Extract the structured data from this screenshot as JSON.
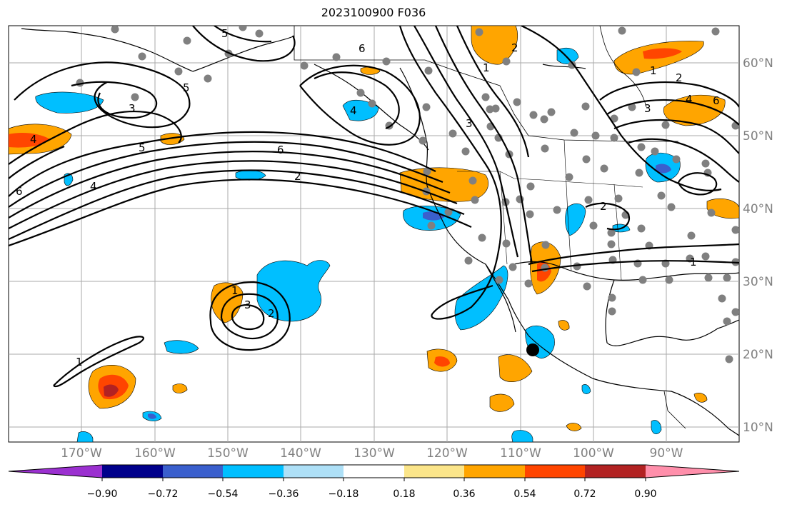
{
  "title": "2023100900 F036",
  "map": {
    "lat_labels": [
      "60°N",
      "50°N",
      "40°N",
      "30°N",
      "20°N",
      "10°N"
    ],
    "lon_labels": [
      "170°W",
      "160°W",
      "150°W",
      "140°W",
      "130°W",
      "120°W",
      "110°W",
      "100°W",
      "90°W"
    ],
    "contour_labels": [
      "1",
      "2",
      "3",
      "4",
      "5",
      "6"
    ],
    "colors": {
      "negative_strong": "#9b30d0",
      "negative_navy": "#00008b",
      "negative_blue": "#3a5fcd",
      "negative_cyan": "#00bfff",
      "negative_light": "#aee0f7",
      "positive_light": "#fbe58a",
      "positive_orange": "#ffa500",
      "positive_red": "#ff4500",
      "positive_darkred": "#b22222",
      "positive_pink": "#ff8fab",
      "station_dot": "#808080"
    }
  },
  "colorbar": {
    "tick_labels": [
      "−0.90",
      "−0.72",
      "−0.54",
      "−0.36",
      "−0.18",
      "0.18",
      "0.36",
      "0.54",
      "0.72",
      "0.90"
    ],
    "colors": [
      "#9b30d0",
      "#00008b",
      "#3a5fcd",
      "#00bfff",
      "#aee0f7",
      "#ffffff",
      "#fbe58a",
      "#ffa500",
      "#ff4500",
      "#b22222",
      "#ff8fab"
    ]
  }
}
